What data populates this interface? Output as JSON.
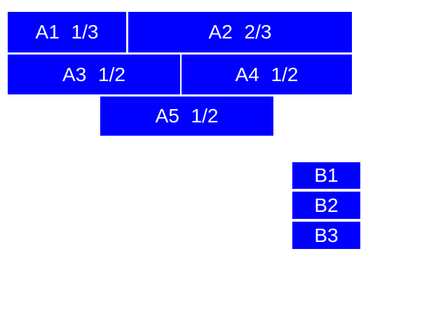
{
  "window": {
    "background": "#ffffff"
  },
  "colors": {
    "block_bg": "#0000ff",
    "block_fg": "#ffffff"
  },
  "blocks": {
    "a1": "A1 1/3",
    "a2": "A2 2/3",
    "a3": "A3 1/2",
    "a4": "A4 1/2",
    "a5": "A5 1/2",
    "b1": "B1",
    "b2": "B2",
    "b3": "B3"
  }
}
